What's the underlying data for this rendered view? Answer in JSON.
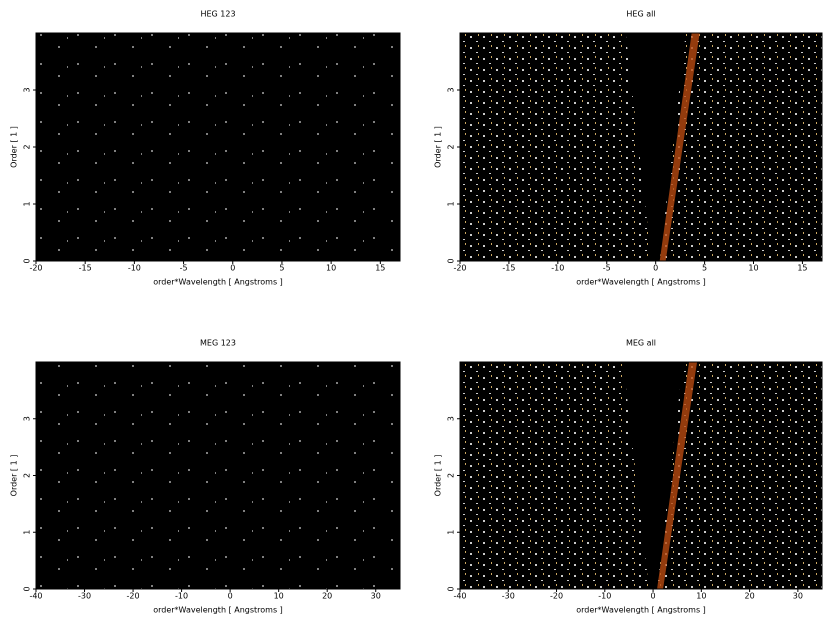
{
  "chart_data": [
    {
      "type": "image",
      "title": "HEG 123",
      "x_label": "order*Wavelength [ Angstroms ]",
      "y_label": "Order [ 1 ]",
      "xlim": [
        -20,
        17
      ],
      "xticks": [
        -20,
        -15,
        -10,
        -5,
        0,
        5,
        10,
        15
      ],
      "ylim": [
        0,
        4
      ],
      "yticks": [
        0,
        1,
        2,
        3
      ]
    },
    {
      "type": "image",
      "title": "HEG all",
      "x_label": "order*Wavelength [ Angstroms ]",
      "y_label": "Order [ 1 ]",
      "xlim": [
        -20,
        17
      ],
      "xticks": [
        -20,
        -15,
        -10,
        -5,
        0,
        5,
        10,
        15
      ],
      "ylim": [
        0,
        4
      ],
      "yticks": [
        0,
        1,
        2,
        3
      ]
    },
    {
      "type": "image",
      "title": "MEG 123",
      "x_label": "order*Wavelength [ Angstroms ]",
      "y_label": "Order [ 1 ]",
      "xlim": [
        -40,
        35
      ],
      "xticks": [
        -40,
        -30,
        -20,
        -10,
        0,
        10,
        20,
        30
      ],
      "ylim": [
        0,
        4
      ],
      "yticks": [
        0,
        1,
        2,
        3
      ]
    },
    {
      "type": "image",
      "title": "MEG all",
      "x_label": "order*Wavelength [ Angstroms ]",
      "y_label": "Order [ 1 ]",
      "xlim": [
        -40,
        35
      ],
      "xticks": [
        -40,
        -30,
        -20,
        -10,
        0,
        10,
        20,
        30
      ],
      "ylim": [
        0,
        4
      ],
      "yticks": [
        0,
        1,
        2,
        3
      ]
    }
  ]
}
